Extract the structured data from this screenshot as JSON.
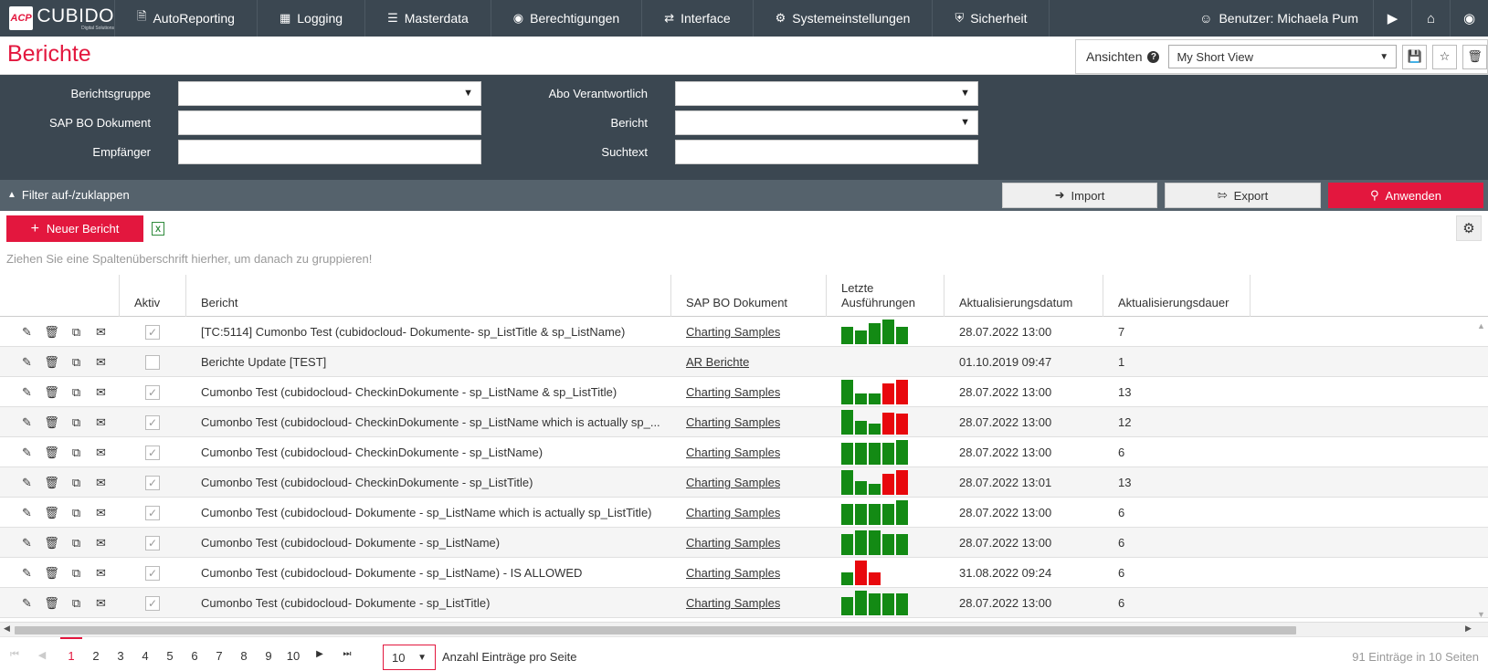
{
  "app": {
    "logo_mark": "ACP",
    "logo_name": "CUBIDO",
    "logo_tagline": "Digital Solutions"
  },
  "nav": [
    {
      "label": "AutoReporting",
      "icon": "document-icon"
    },
    {
      "label": "Logging",
      "icon": "image-icon"
    },
    {
      "label": "Masterdata",
      "icon": "database-icon"
    },
    {
      "label": "Berechtigungen",
      "icon": "eye-icon"
    },
    {
      "label": "Interface",
      "icon": "usb-icon"
    },
    {
      "label": "Systemeinstellungen",
      "icon": "gears-icon"
    },
    {
      "label": "Sicherheit",
      "icon": "shield-icon"
    }
  ],
  "user": {
    "label": "Benutzer: Michaela Pum",
    "icon": "user-icon"
  },
  "page_title": "Berichte",
  "views": {
    "label": "Ansichten",
    "selected": "My Short View"
  },
  "filters": {
    "berichtsgruppe": {
      "label": "Berichtsgruppe",
      "value": ""
    },
    "sap_bo_dokument": {
      "label": "SAP BO Dokument",
      "value": ""
    },
    "empfaenger": {
      "label": "Empfänger",
      "value": ""
    },
    "abo_verantwortlich": {
      "label": "Abo Verantwortlich",
      "value": ""
    },
    "bericht": {
      "label": "Bericht",
      "value": ""
    },
    "suchtext": {
      "label": "Suchtext",
      "value": ""
    }
  },
  "filter_toggle": "Filter auf-/zuklappen",
  "buttons": {
    "import": "Import",
    "export": "Export",
    "apply": "Anwenden",
    "new_report": "Neuer Bericht"
  },
  "group_hint": "Ziehen Sie eine Spaltenüberschrift hierher, um danach zu gruppieren!",
  "columns": {
    "aktiv": "Aktiv",
    "bericht": "Bericht",
    "sap_bo": "SAP BO Dokument",
    "letzte_line1": "Letzte",
    "letzte_line2": "Ausführungen",
    "datum": "Aktualisierungsdatum",
    "dauer": "Aktualisierungsdauer"
  },
  "colors": {
    "accent": "#e3173e",
    "ok": "#138a14",
    "fail": "#e8080d",
    "nav_bg": "#3b4751"
  },
  "rows": [
    {
      "aktiv": true,
      "bericht": "[TC:5114] Cumonbo Test (cubidocloud- Dokumente- sp_ListTitle & sp_ListName)",
      "sap_bo": "Charting Samples",
      "datum": "28.07.2022 13:00",
      "dauer": "7",
      "runs": [
        {
          "level": 0.7,
          "status": "ok"
        },
        {
          "level": 0.55,
          "status": "ok"
        },
        {
          "level": 0.85,
          "status": "ok"
        },
        {
          "level": 1.0,
          "status": "ok"
        },
        {
          "level": 0.7,
          "status": "ok"
        }
      ]
    },
    {
      "aktiv": false,
      "bericht": "Berichte Update [TEST]",
      "sap_bo": "AR Berichte",
      "datum": "01.10.2019 09:47",
      "dauer": "1",
      "runs": []
    },
    {
      "aktiv": true,
      "bericht": "Cumonbo Test (cubidocloud- CheckinDokumente - sp_ListName & sp_ListTitle)",
      "sap_bo": "Charting Samples",
      "datum": "28.07.2022 13:00",
      "dauer": "13",
      "runs": [
        {
          "level": 1.0,
          "status": "ok"
        },
        {
          "level": 0.45,
          "status": "ok"
        },
        {
          "level": 0.45,
          "status": "ok"
        },
        {
          "level": 0.85,
          "status": "fail"
        },
        {
          "level": 1.0,
          "status": "fail"
        }
      ]
    },
    {
      "aktiv": true,
      "bericht": "Cumonbo Test (cubidocloud- CheckinDokumente - sp_ListName which is actually sp_...",
      "sap_bo": "Charting Samples",
      "datum": "28.07.2022 13:00",
      "dauer": "12",
      "runs": [
        {
          "level": 1.0,
          "status": "ok"
        },
        {
          "level": 0.55,
          "status": "ok"
        },
        {
          "level": 0.45,
          "status": "ok"
        },
        {
          "level": 0.9,
          "status": "fail"
        },
        {
          "level": 0.85,
          "status": "fail"
        }
      ]
    },
    {
      "aktiv": true,
      "bericht": "Cumonbo Test (cubidocloud- CheckinDokumente - sp_ListName)",
      "sap_bo": "Charting Samples",
      "datum": "28.07.2022 13:00",
      "dauer": "6",
      "runs": [
        {
          "level": 0.9,
          "status": "ok"
        },
        {
          "level": 0.9,
          "status": "ok"
        },
        {
          "level": 0.9,
          "status": "ok"
        },
        {
          "level": 0.9,
          "status": "ok"
        },
        {
          "level": 1.0,
          "status": "ok"
        }
      ]
    },
    {
      "aktiv": true,
      "bericht": "Cumonbo Test (cubidocloud- CheckinDokumente - sp_ListTitle)",
      "sap_bo": "Charting Samples",
      "datum": "28.07.2022 13:01",
      "dauer": "13",
      "runs": [
        {
          "level": 1.0,
          "status": "ok"
        },
        {
          "level": 0.55,
          "status": "ok"
        },
        {
          "level": 0.45,
          "status": "ok"
        },
        {
          "level": 0.85,
          "status": "fail"
        },
        {
          "level": 1.0,
          "status": "fail"
        }
      ]
    },
    {
      "aktiv": true,
      "bericht": "Cumonbo Test (cubidocloud- Dokumente - sp_ListName which is actually sp_ListTitle)",
      "sap_bo": "Charting Samples",
      "datum": "28.07.2022 13:00",
      "dauer": "6",
      "runs": [
        {
          "level": 0.85,
          "status": "ok"
        },
        {
          "level": 0.85,
          "status": "ok"
        },
        {
          "level": 0.85,
          "status": "ok"
        },
        {
          "level": 0.85,
          "status": "ok"
        },
        {
          "level": 1.0,
          "status": "ok"
        }
      ]
    },
    {
      "aktiv": true,
      "bericht": "Cumonbo Test (cubidocloud- Dokumente - sp_ListName)",
      "sap_bo": "Charting Samples",
      "datum": "28.07.2022 13:00",
      "dauer": "6",
      "runs": [
        {
          "level": 0.85,
          "status": "ok"
        },
        {
          "level": 1.0,
          "status": "ok"
        },
        {
          "level": 1.0,
          "status": "ok"
        },
        {
          "level": 0.85,
          "status": "ok"
        },
        {
          "level": 0.85,
          "status": "ok"
        }
      ]
    },
    {
      "aktiv": true,
      "bericht": "Cumonbo Test (cubidocloud- Dokumente - sp_ListName) - IS ALLOWED",
      "sap_bo": "Charting Samples",
      "datum": "31.08.2022 09:24",
      "dauer": "6",
      "runs": [
        {
          "level": 0.5,
          "status": "ok"
        },
        {
          "level": 1.0,
          "status": "fail"
        },
        {
          "level": 0.5,
          "status": "fail"
        }
      ]
    },
    {
      "aktiv": true,
      "bericht": "Cumonbo Test (cubidocloud- Dokumente - sp_ListTitle)",
      "sap_bo": "Charting Samples",
      "datum": "28.07.2022 13:00",
      "dauer": "6",
      "runs": [
        {
          "level": 0.75,
          "status": "ok"
        },
        {
          "level": 1.0,
          "status": "ok"
        },
        {
          "level": 0.9,
          "status": "ok"
        },
        {
          "level": 0.9,
          "status": "ok"
        },
        {
          "level": 0.9,
          "status": "ok"
        }
      ]
    }
  ],
  "pager": {
    "pages": [
      "1",
      "2",
      "3",
      "4",
      "5",
      "6",
      "7",
      "8",
      "9",
      "10"
    ],
    "current": "1",
    "page_size": "10",
    "page_size_label": "Anzahl Einträge pro Seite",
    "info": "91 Einträge in 10 Seiten"
  }
}
